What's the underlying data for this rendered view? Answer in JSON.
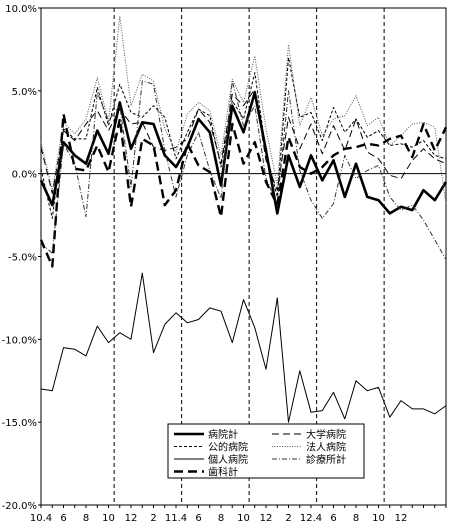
{
  "chart_data": {
    "type": "line",
    "title": "",
    "xlabel": "",
    "ylabel": "",
    "ylim": [
      -20.0,
      10.0
    ],
    "y_ticks": [
      10.0,
      5.0,
      0.0,
      -5.0,
      -10.0,
      -15.0,
      -20.0
    ],
    "y_tick_labels": [
      "10.0%",
      "5.0%",
      "0.0%",
      "-5.0%",
      "-10.0%",
      "-15.0%",
      "-20.0%"
    ],
    "x_count": 37,
    "x_tick_labels": [
      {
        "i": 0,
        "label": "10.4"
      },
      {
        "i": 2,
        "label": "6"
      },
      {
        "i": 4,
        "label": "8"
      },
      {
        "i": 6,
        "label": "10"
      },
      {
        "i": 8,
        "label": "12"
      },
      {
        "i": 10,
        "label": "2"
      },
      {
        "i": 12,
        "label": "11.4"
      },
      {
        "i": 14,
        "label": "6"
      },
      {
        "i": 16,
        "label": "8"
      },
      {
        "i": 18,
        "label": "10"
      },
      {
        "i": 20,
        "label": "12"
      },
      {
        "i": 22,
        "label": "2"
      },
      {
        "i": 24,
        "label": "12.4"
      },
      {
        "i": 26,
        "label": "6"
      },
      {
        "i": 28,
        "label": "8"
      },
      {
        "i": 30,
        "label": "10"
      },
      {
        "i": 32,
        "label": "12"
      }
    ],
    "year_separators": [
      6.5,
      12.5,
      18.5,
      24.5,
      30.5
    ],
    "grid": false,
    "legend_position": "bottom-center",
    "series": [
      {
        "name": "病院計",
        "style": "thick-solid",
        "color": "#000000",
        "values": [
          -0.4,
          -1.9,
          1.9,
          1.1,
          0.6,
          2.6,
          1.2,
          4.3,
          1.5,
          3.1,
          3.0,
          1.1,
          0.4,
          1.6,
          3.3,
          2.5,
          -0.7,
          4.1,
          2.5,
          4.9,
          1.4,
          -2.4,
          1.1,
          -0.8,
          1.1,
          -0.4,
          0.8,
          -1.4,
          0.6,
          -1.4,
          -1.6,
          -2.4,
          -2.0,
          -2.2,
          -1.0,
          -1.6,
          -0.5
        ]
      },
      {
        "name": "大学病院",
        "style": "long-dash-thin",
        "color": "#000000",
        "values": [
          1.6,
          -1.2,
          2.6,
          2.0,
          3.0,
          3.8,
          2.6,
          3.9,
          3.0,
          3.1,
          1.6,
          1.4,
          1.6,
          2.1,
          3.9,
          3.1,
          0.6,
          4.8,
          4.1,
          5.1,
          0.8,
          -1.0,
          3.4,
          1.5,
          3.0,
          1.2,
          2.9,
          1.4,
          3.3,
          1.3,
          0.9,
          -0.1,
          -0.3,
          0.8,
          1.5,
          0.9,
          0.6
        ]
      },
      {
        "name": "公的病院",
        "style": "short-dash",
        "color": "#000000",
        "values": [
          0.3,
          -2.7,
          2.7,
          2.1,
          2.1,
          5.2,
          2.9,
          5.4,
          3.7,
          3.4,
          4.1,
          3.4,
          0.9,
          2.5,
          3.9,
          3.5,
          0.4,
          4.4,
          3.3,
          6.1,
          1.3,
          -1.4,
          7.0,
          3.4,
          3.7,
          2.0,
          4.0,
          2.5,
          3.3,
          2.2,
          2.6,
          1.7,
          1.8,
          1.6,
          2.0,
          1.1,
          0.9
        ]
      },
      {
        "name": "法人病院",
        "style": "dotted",
        "color": "#555555",
        "values": [
          1.9,
          -1.0,
          3.1,
          2.4,
          3.3,
          5.8,
          3.1,
          9.5,
          4.1,
          6.0,
          5.6,
          2.7,
          1.3,
          3.6,
          4.3,
          3.8,
          1.1,
          5.7,
          4.3,
          7.1,
          2.7,
          -0.7,
          7.8,
          2.9,
          4.6,
          2.3,
          3.3,
          3.5,
          4.7,
          2.9,
          3.4,
          1.7,
          2.3,
          3.0,
          3.1,
          2.8,
          -1.8
        ]
      },
      {
        "name": "個人病院",
        "style": "thin-solid",
        "color": "#000000",
        "values": [
          -13.0,
          -13.1,
          -10.5,
          -10.6,
          -11.0,
          -9.2,
          -10.2,
          -9.6,
          -10.0,
          -6.0,
          -10.8,
          -9.1,
          -8.4,
          -9.0,
          -8.8,
          -8.1,
          -8.3,
          -10.2,
          -7.6,
          -9.3,
          -11.8,
          -7.5,
          -15.0,
          -11.9,
          -14.4,
          -14.3,
          -13.2,
          -14.8,
          -12.5,
          -13.1,
          -12.9,
          -14.7,
          -13.7,
          -14.2,
          -14.2,
          -14.5,
          -14.0
        ]
      },
      {
        "name": "診療所計",
        "style": "dash-dot",
        "color": "#333333",
        "values": [
          -4.2,
          -4.8,
          1.8,
          0.6,
          -2.6,
          4.9,
          3.2,
          4.1,
          -0.8,
          5.6,
          5.4,
          1.4,
          -1.4,
          1.1,
          2.5,
          0.2,
          -1.5,
          5.6,
          2.9,
          4.1,
          -0.3,
          -1.8,
          5.0,
          0.2,
          -1.6,
          -2.7,
          -1.8,
          1.1,
          -0.3,
          0.2,
          0.5,
          -1.4,
          -2.2,
          -1.9,
          -2.8,
          -4.0,
          -5.2
        ]
      },
      {
        "name": "歯科計",
        "style": "thick-dash",
        "color": "#000000",
        "values": [
          -4.0,
          -5.6,
          3.6,
          0.3,
          0.2,
          1.7,
          0.1,
          3.3,
          -2.0,
          2.1,
          1.7,
          -1.9,
          -1.0,
          1.8,
          0.5,
          0.1,
          -2.6,
          3.0,
          0.6,
          1.9,
          -0.5,
          -1.9,
          2.2,
          0.4,
          0.0,
          0.4,
          1.1,
          1.5,
          1.6,
          1.8,
          1.7,
          2.1,
          2.3,
          1.0,
          3.0,
          1.4,
          2.8
        ]
      }
    ]
  }
}
